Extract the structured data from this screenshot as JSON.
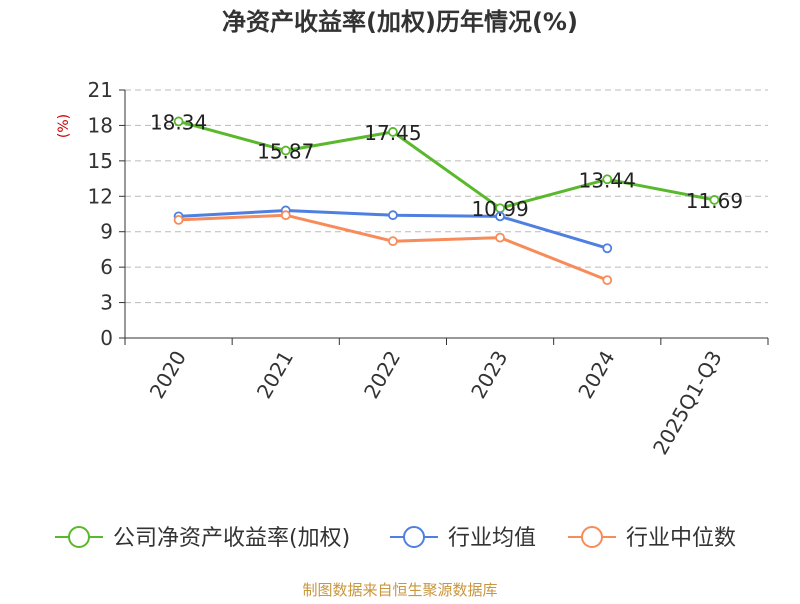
{
  "chart_data": {
    "type": "line",
    "title": "净资产收益率(加权)历年情况(%)",
    "ylabel": "(%)",
    "xlabel": "",
    "categories": [
      "2020",
      "2021",
      "2022",
      "2023",
      "2024",
      "2025Q1-Q3"
    ],
    "ylim": [
      0,
      21
    ],
    "yticks": [
      0,
      3,
      6,
      9,
      12,
      15,
      18,
      21
    ],
    "grid": true,
    "legend_position": "bottom",
    "series": [
      {
        "name": "公司净资产收益率(加权)",
        "color": "#5ab82c",
        "values": [
          18.34,
          15.87,
          17.45,
          10.99,
          13.44,
          11.69
        ],
        "data_labels": [
          "18.34",
          "15.87",
          "17.45",
          "10.99",
          "13.44",
          "11.69"
        ]
      },
      {
        "name": "行业均值",
        "color": "#4f7fe0",
        "values": [
          10.3,
          10.8,
          10.4,
          10.3,
          7.6,
          null
        ]
      },
      {
        "name": "行业中位数",
        "color": "#f78c5a",
        "values": [
          10.0,
          10.4,
          8.2,
          8.5,
          4.9,
          null
        ]
      }
    ]
  },
  "footer": {
    "source": "制图数据来自恒生聚源数据库"
  },
  "colors": {
    "title": "#333333",
    "axis": "#333333",
    "ylabel": "#cc0000",
    "footer": "#c8963e",
    "grid": "#bbbbbb"
  }
}
